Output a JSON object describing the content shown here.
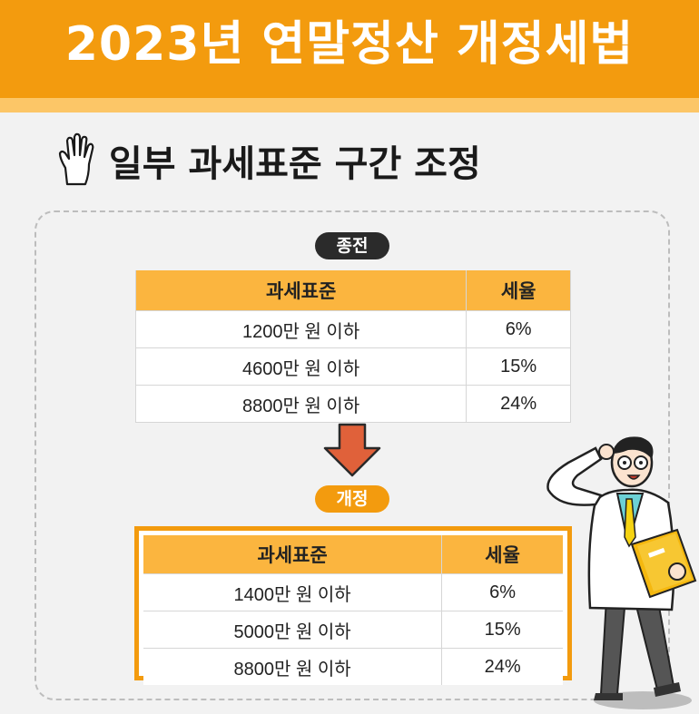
{
  "header": {
    "title": "2023년 연말정산 개정세법"
  },
  "section": {
    "title": "일부 과세표준 구간 조정",
    "icon": "hand-icon"
  },
  "before": {
    "label": "종전",
    "columns": [
      "과세표준",
      "세율"
    ],
    "rows": [
      [
        "1200만 원 이하",
        "6%"
      ],
      [
        "4600만 원 이하",
        "15%"
      ],
      [
        "8800만 원 이하",
        "24%"
      ]
    ]
  },
  "after": {
    "label": "개정",
    "columns": [
      "과세표준",
      "세율"
    ],
    "rows": [
      [
        "1400만 원 이하",
        "6%"
      ],
      [
        "5000만 원 이하",
        "15%"
      ],
      [
        "8800만 원 이하",
        "24%"
      ]
    ]
  },
  "colors": {
    "accent": "#f39b0e",
    "header_light": "#fcc667",
    "table_head": "#fbb53f",
    "arrow": "#e0613a"
  }
}
